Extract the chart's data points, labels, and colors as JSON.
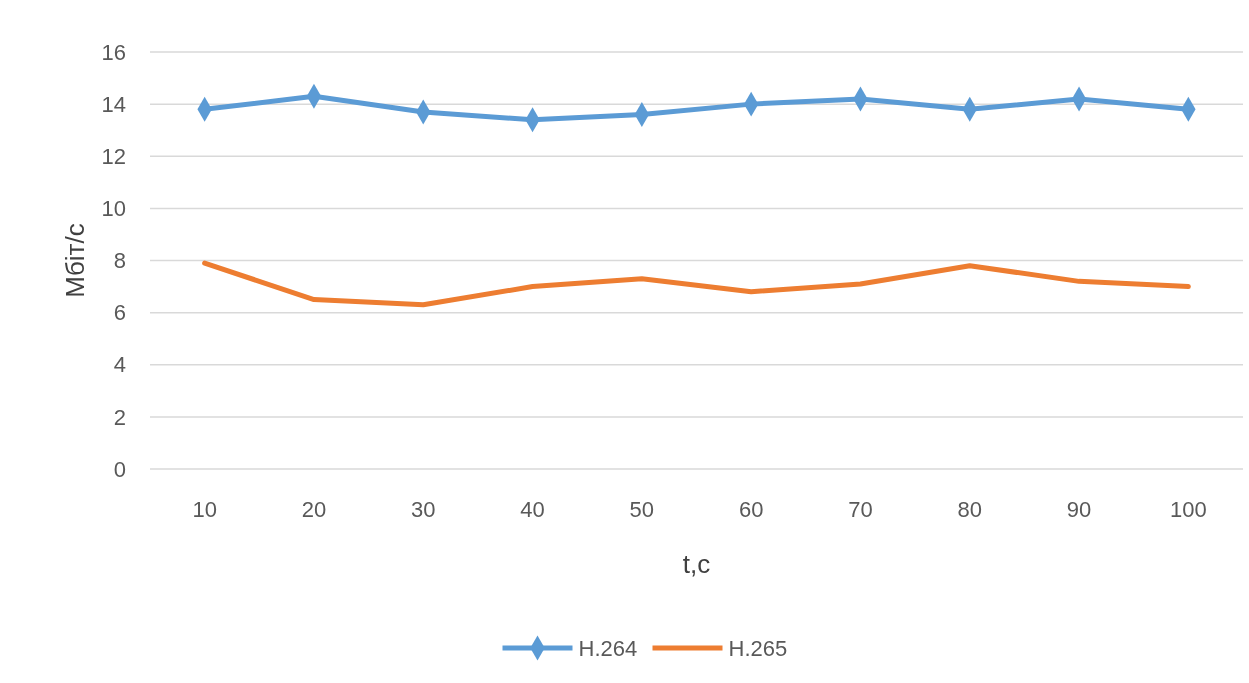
{
  "chart_data": {
    "type": "line",
    "xlabel": "t,c",
    "ylabel": "Мбіт/с",
    "categories": [
      "10",
      "20",
      "30",
      "40",
      "50",
      "60",
      "70",
      "80",
      "90",
      "100"
    ],
    "series": [
      {
        "name": "H.264",
        "color": "#5b9bd5",
        "marker": "diamond",
        "values": [
          13.8,
          14.3,
          13.7,
          13.4,
          13.6,
          14.0,
          14.2,
          13.8,
          14.2,
          13.8
        ]
      },
      {
        "name": "H.265",
        "color": "#ed7d31",
        "marker": "none",
        "values": [
          7.9,
          6.5,
          6.3,
          7.0,
          7.3,
          6.8,
          7.1,
          7.8,
          7.2,
          7.0
        ]
      }
    ],
    "ylim": [
      0,
      16
    ],
    "yticks": [
      0,
      2,
      4,
      6,
      8,
      10,
      12,
      14,
      16
    ],
    "grid": "y",
    "legend": "bottom",
    "line_style": "solid"
  }
}
